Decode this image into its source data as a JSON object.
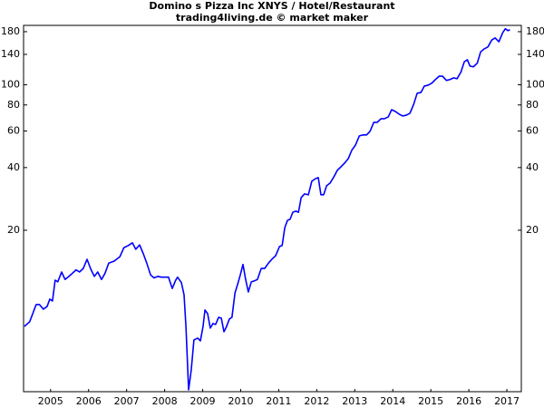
{
  "chart_data": {
    "type": "line",
    "title": "Domino s Pizza Inc XNYS / Hotel/Restaurant",
    "subtitle": "trading4living.de © market maker",
    "yscale": "log",
    "grid": false,
    "xlim": [
      2004.79,
      2017.88
    ],
    "ylim": [
      3.35,
      193
    ],
    "yticks": [
      20,
      40,
      60,
      80,
      100,
      140,
      180
    ],
    "xticks": [
      {
        "value": 2005.5,
        "label": "2005"
      },
      {
        "value": 2006.5,
        "label": "2006"
      },
      {
        "value": 2007.5,
        "label": "2007"
      },
      {
        "value": 2008.5,
        "label": "2008"
      },
      {
        "value": 2009.5,
        "label": "2009"
      },
      {
        "value": 2010.5,
        "label": "2010"
      },
      {
        "value": 2011.5,
        "label": "2011"
      },
      {
        "value": 2012.5,
        "label": "2012"
      },
      {
        "value": 2013.5,
        "label": "2013"
      },
      {
        "value": 2014.5,
        "label": "2014"
      },
      {
        "value": 2015.5,
        "label": "2015"
      },
      {
        "value": 2016.5,
        "label": "2016"
      },
      {
        "value": 2017.5,
        "label": "2017"
      }
    ],
    "x": [
      2004.81,
      2004.95,
      2005.12,
      2005.21,
      2005.31,
      2005.41,
      2005.48,
      2005.55,
      2005.62,
      2005.69,
      2005.79,
      2005.88,
      2005.98,
      2006.07,
      2006.17,
      2006.26,
      2006.36,
      2006.46,
      2006.55,
      2006.65,
      2006.74,
      2006.84,
      2006.93,
      2007.03,
      2007.17,
      2007.32,
      2007.43,
      2007.55,
      2007.65,
      2007.74,
      2007.84,
      2007.94,
      2008.03,
      2008.13,
      2008.22,
      2008.32,
      2008.41,
      2008.51,
      2008.6,
      2008.7,
      2008.79,
      2008.84,
      2008.94,
      2009.01,
      2009.06,
      2009.13,
      2009.2,
      2009.27,
      2009.37,
      2009.44,
      2009.51,
      2009.56,
      2009.63,
      2009.7,
      2009.77,
      2009.84,
      2009.92,
      2009.99,
      2010.06,
      2010.13,
      2010.2,
      2010.27,
      2010.35,
      2010.42,
      2010.49,
      2010.56,
      2010.63,
      2010.7,
      2010.78,
      2010.85,
      2010.94,
      2011.04,
      2011.13,
      2011.23,
      2011.32,
      2011.42,
      2011.52,
      2011.59,
      2011.66,
      2011.73,
      2011.8,
      2011.87,
      2011.95,
      2012.02,
      2012.09,
      2012.18,
      2012.28,
      2012.37,
      2012.47,
      2012.54,
      2012.61,
      2012.68,
      2012.76,
      2012.85,
      2012.95,
      2013.04,
      2013.14,
      2013.23,
      2013.33,
      2013.42,
      2013.52,
      2013.62,
      2013.71,
      2013.81,
      2013.9,
      2014.0,
      2014.09,
      2014.19,
      2014.28,
      2014.38,
      2014.47,
      2014.57,
      2014.67,
      2014.76,
      2014.86,
      2014.95,
      2015.05,
      2015.14,
      2015.24,
      2015.33,
      2015.43,
      2015.53,
      2015.62,
      2015.72,
      2015.81,
      2015.91,
      2016.0,
      2016.1,
      2016.19,
      2016.29,
      2016.38,
      2016.46,
      2016.53,
      2016.62,
      2016.72,
      2016.81,
      2016.91,
      2017.0,
      2017.1,
      2017.19,
      2017.29,
      2017.39,
      2017.46,
      2017.53,
      2017.58
    ],
    "series": [
      {
        "color": "#0000ff",
        "values": [
          6.9,
          7.26,
          8.78,
          8.78,
          8.35,
          8.61,
          9.33,
          9.14,
          11.5,
          11.3,
          12.6,
          11.6,
          12.0,
          12.4,
          12.9,
          12.6,
          13.1,
          14.5,
          13.1,
          12.0,
          12.6,
          11.6,
          12.4,
          13.9,
          14.2,
          14.9,
          16.5,
          16.9,
          17.4,
          16.2,
          17.0,
          15.4,
          13.9,
          12.2,
          11.8,
          12.0,
          11.9,
          11.9,
          11.9,
          10.5,
          11.5,
          11.9,
          11.2,
          9.8,
          6.9,
          3.42,
          4.27,
          5.94,
          6.06,
          5.88,
          6.9,
          8.27,
          7.95,
          6.77,
          7.12,
          7.05,
          7.63,
          7.56,
          6.5,
          6.9,
          7.48,
          7.63,
          10.0,
          11.0,
          12.2,
          13.7,
          11.6,
          10.1,
          11.3,
          11.4,
          11.6,
          13.1,
          13.1,
          13.9,
          14.5,
          15.1,
          16.7,
          16.9,
          20.6,
          22.3,
          22.6,
          24.4,
          24.7,
          24.4,
          28.7,
          29.9,
          29.6,
          34.4,
          35.4,
          35.8,
          29.6,
          29.6,
          32.7,
          33.7,
          36.1,
          38.8,
          40.4,
          42.0,
          44.2,
          48.4,
          51.4,
          56.8,
          57.4,
          57.4,
          59.7,
          66.0,
          66.0,
          68.7,
          68.7,
          70.1,
          75.9,
          74.4,
          72.2,
          70.8,
          71.5,
          73.0,
          80.7,
          91.0,
          91.9,
          98.6,
          99.6,
          102,
          106,
          110,
          110,
          105,
          106,
          108,
          107,
          115,
          129,
          132,
          123,
          122,
          127,
          144,
          149,
          152,
          164,
          168,
          161,
          178,
          186,
          182,
          184
        ]
      }
    ]
  }
}
